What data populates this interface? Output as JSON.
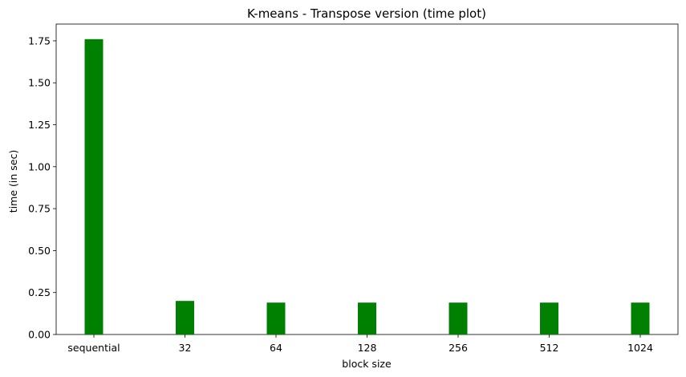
{
  "chart_data": {
    "type": "bar",
    "title": "K-means - Transpose version (time plot)",
    "xlabel": "block size",
    "ylabel": "time (in sec)",
    "categories": [
      "sequential",
      "32",
      "64",
      "128",
      "256",
      "512",
      "1024"
    ],
    "values": [
      1.76,
      0.2,
      0.19,
      0.19,
      0.19,
      0.19,
      0.19
    ],
    "ylim": [
      0,
      1.85
    ],
    "yticks": [
      "0.00",
      "0.25",
      "0.50",
      "0.75",
      "1.00",
      "1.25",
      "1.50",
      "1.75"
    ],
    "bar_color": "#008000",
    "grid": false,
    "legend": "none"
  }
}
